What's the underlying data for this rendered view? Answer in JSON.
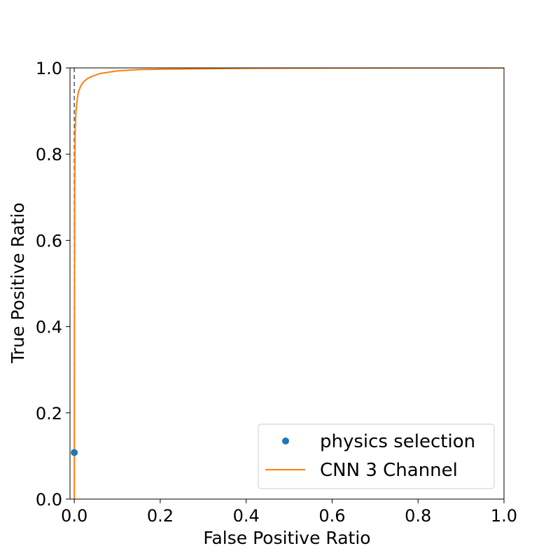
{
  "chart_data": {
    "type": "line",
    "title": "",
    "xlabel": "False Positive Ratio",
    "ylabel": "True Positive Ratio",
    "xlim": [
      -0.01,
      1.0
    ],
    "ylim": [
      0.0,
      1.0
    ],
    "x_ticks": [
      "0.0",
      "0.2",
      "0.4",
      "0.6",
      "0.8",
      "1.0"
    ],
    "y_ticks": [
      "0.0",
      "0.2",
      "0.4",
      "0.6",
      "0.8",
      "1.0"
    ],
    "grid": false,
    "legend_position": "lower-right",
    "reference_line": {
      "style": "dashed",
      "color": "#555555",
      "x": [
        0.0,
        0.0
      ],
      "y": [
        0.0,
        1.0
      ]
    },
    "series": [
      {
        "name": "physics selection",
        "kind": "scatter",
        "color": "#1f77b4",
        "x": [
          0.0
        ],
        "y": [
          0.108
        ]
      },
      {
        "name": "CNN 3 Channel",
        "kind": "line",
        "color": "#ff7f0e",
        "x": [
          0.0,
          0.0005,
          0.001,
          0.0015,
          0.002,
          0.003,
          0.004,
          0.006,
          0.008,
          0.01,
          0.015,
          0.02,
          0.03,
          0.04,
          0.06,
          0.08,
          0.1,
          0.15,
          0.2,
          0.3,
          0.4,
          0.6,
          0.8,
          1.0
        ],
        "y": [
          0.0,
          0.5,
          0.72,
          0.8,
          0.85,
          0.88,
          0.9,
          0.92,
          0.935,
          0.945,
          0.958,
          0.966,
          0.975,
          0.98,
          0.987,
          0.99,
          0.993,
          0.996,
          0.997,
          0.998,
          0.999,
          0.9995,
          0.9998,
          1.0
        ]
      }
    ]
  }
}
